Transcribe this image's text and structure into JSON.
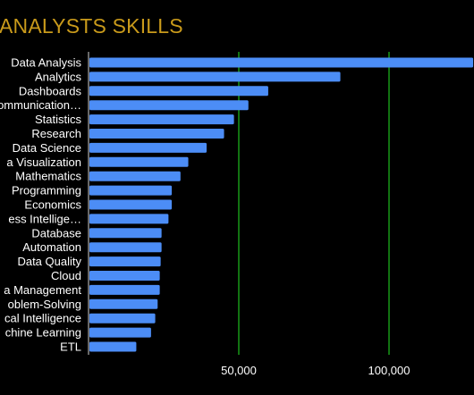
{
  "title": "ANALYSTS SKILLS",
  "colors": {
    "background": "#000000",
    "title": "#c99a1b",
    "bar": "#4c8df6",
    "grid": "#1fbf1f",
    "text": "#ffffff"
  },
  "chart_data": {
    "type": "bar",
    "orientation": "horizontal",
    "title": "ANALYSTS SKILLS",
    "xlabel": "",
    "ylabel": "",
    "xlim": [
      0,
      127000
    ],
    "xticks": [
      50000,
      100000
    ],
    "xtick_labels": [
      "50,000",
      "100,000"
    ],
    "grid": "vertical, at ticks",
    "categories": [
      "Data Analysis",
      "Analytics",
      "Dashboards",
      "ommunication…",
      "Statistics",
      "Research",
      "Data Science",
      "a Visualization",
      "Mathematics",
      "Programming",
      "Economics",
      "ess Intellige…",
      "Database",
      "Automation",
      "Data Quality",
      "Cloud",
      "a Management",
      "oblem-Solving",
      "cal Intelligence",
      "chine Learning",
      "ETL"
    ],
    "values": [
      128000,
      83800,
      59800,
      53200,
      48400,
      45100,
      39300,
      33200,
      30600,
      27700,
      27700,
      26600,
      24300,
      24300,
      24000,
      23700,
      23700,
      23000,
      22200,
      20800,
      15900
    ]
  }
}
